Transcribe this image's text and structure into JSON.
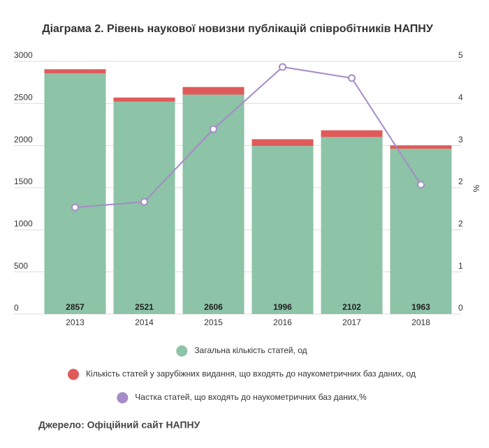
{
  "chart_data": {
    "type": "bar",
    "title": "Діаграма 2. Рівень наукової новизни публікацій співробітників НАПНУ",
    "categories": [
      "2013",
      "2014",
      "2015",
      "2016",
      "2017",
      "2018"
    ],
    "series": [
      {
        "name": "Загальна кількість статей, од",
        "color": "#8dc3a7",
        "values": [
          2857,
          2521,
          2606,
          1996,
          2102,
          1963
        ]
      },
      {
        "name": "Кількість статей у зарубіжних видання, що входять до наукометричних баз даних, од",
        "color": "#e05a5a",
        "values": [
          50,
          50,
          90,
          80,
          80,
          40
        ]
      },
      {
        "name": "Частка статей, що входять до наукометричних баз даних,%",
        "color": "#a58bc8",
        "axis": "y2",
        "type": "line",
        "values": [
          2.11,
          2.22,
          3.66,
          4.89,
          4.67,
          2.56
        ]
      }
    ],
    "ylim": [
      0,
      3000
    ],
    "yticks": [
      0,
      500,
      1000,
      1500,
      2000,
      2500,
      3000
    ],
    "y2lim": [
      0,
      5
    ],
    "y2ticks": [
      0,
      {
        "value": 0.833,
        "label": "1"
      },
      {
        "value": 1.667,
        "label": "2"
      },
      {
        "value": 2.5,
        "label": "2"
      },
      {
        "value": 3.333,
        "label": "3"
      },
      {
        "value": 4.167,
        "label": "4"
      },
      5
    ],
    "y2label": "%",
    "grid": true,
    "source": "Джерело: Офіційний сайт НАПНУ"
  }
}
